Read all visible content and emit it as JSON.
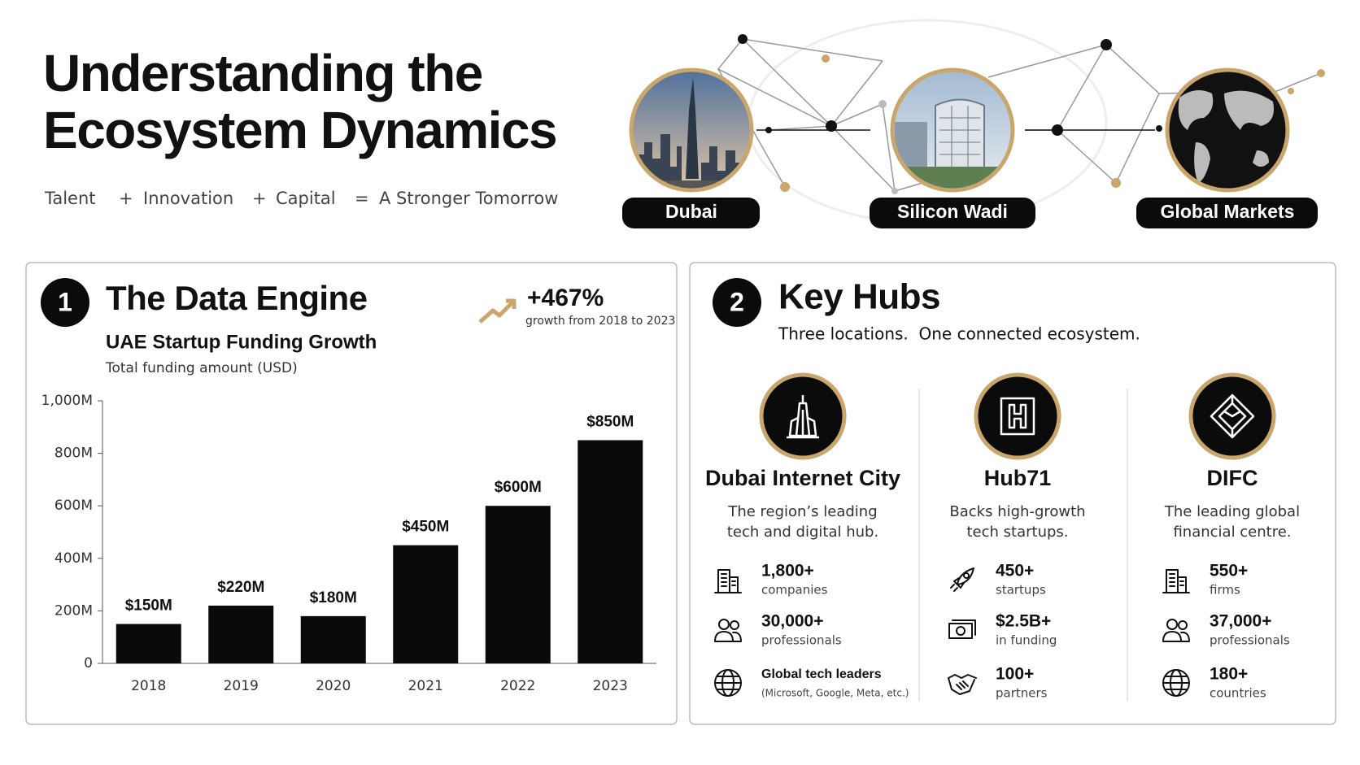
{
  "header": {
    "title_lines": [
      "Understanding the",
      "Ecosystem Dynamics"
    ],
    "tagline": [
      "Talent",
      "+",
      "Innovation",
      "+",
      "Capital",
      "=",
      "A Stronger Tomorrow"
    ]
  },
  "locations": [
    "Dubai",
    "Silicon Wadi",
    "Global Markets"
  ],
  "data_engine": {
    "number": "1",
    "title": "The Data Engine",
    "growth": "+467%",
    "growth_note": "growth from 2018 to 2023"
  },
  "chart_data": {
    "type": "bar",
    "title": "UAE Startup Funding Growth",
    "subtitle": "Total funding amount (USD)",
    "categories": [
      "2018",
      "2019",
      "2020",
      "2021",
      "2022",
      "2023"
    ],
    "values": [
      150,
      220,
      180,
      450,
      600,
      850
    ],
    "value_labels": [
      "$150M",
      "$220M",
      "$180M",
      "$450M",
      "$600M",
      "$850M"
    ],
    "color": "#0a0a0a",
    "ylim": [
      0,
      1000
    ],
    "yticks": [
      0,
      {
        "value": 200,
        "label": "200M"
      },
      {
        "value": 400,
        "label": "400M"
      },
      {
        "value": 600,
        "label": "600M"
      },
      {
        "value": 800,
        "label": "800M"
      },
      {
        "value": 1000,
        "label": "1,000M"
      }
    ]
  },
  "key_hubs": {
    "number": "2",
    "title": "Key Hubs",
    "subtitle": "Three locations.  One connected ecosystem.",
    "hubs": [
      {
        "name": "Dubai Internet City",
        "description": [
          "The region’s leading",
          "tech and digital hub."
        ],
        "stats": [
          {
            "value": "1,800+",
            "label": "companies"
          },
          {
            "value": "30,000+",
            "label": "professionals"
          },
          {
            "value": "Global tech leaders",
            "label": "(Microsoft, Google, Meta, etc.)"
          }
        ]
      },
      {
        "name": "Hub71",
        "description": [
          "Backs high-growth",
          "tech startups."
        ],
        "stats": [
          {
            "value": "450+",
            "label": "startups"
          },
          {
            "value": "$2.5B+",
            "label": "in funding"
          },
          {
            "value": "100+",
            "label": "partners"
          }
        ]
      },
      {
        "name": "DIFC",
        "description": [
          "The leading global",
          "financial centre."
        ],
        "stats": [
          {
            "value": "550+",
            "label": "firms"
          },
          {
            "value": "37,000+",
            "label": "professionals"
          },
          {
            "value": "180+",
            "label": "countries"
          }
        ]
      }
    ]
  }
}
